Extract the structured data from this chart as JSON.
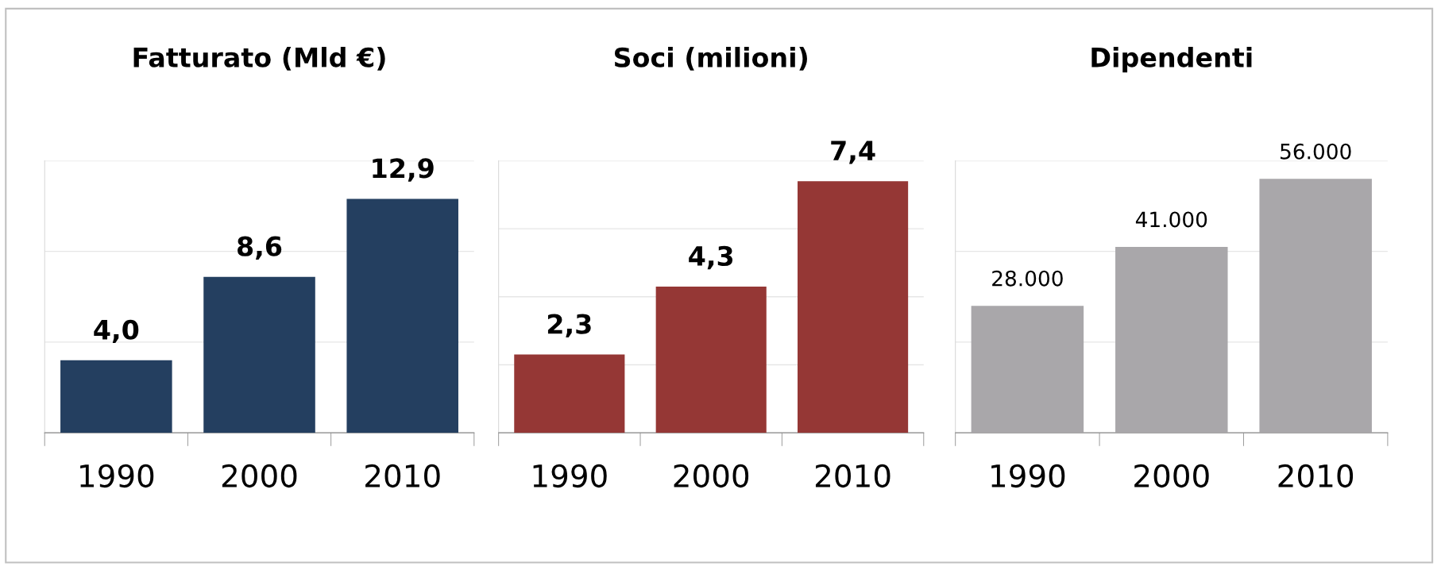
{
  "chart_data": [
    {
      "type": "bar",
      "title": "Fatturato (Mld €)",
      "categories": [
        "1990",
        "2000",
        "2010"
      ],
      "values": [
        4.0,
        8.6,
        12.9
      ],
      "value_labels": [
        "4,0",
        "8,6",
        "12,9"
      ],
      "color": "#243f60",
      "ylim": [
        0,
        15
      ],
      "yticks": [
        {
          "value": 0,
          "label": null
        },
        {
          "value": 5,
          "label": null
        },
        {
          "value": 10,
          "label": null
        },
        {
          "value": 15,
          "label": null
        }
      ],
      "grid": "y"
    },
    {
      "type": "bar",
      "title": "Soci (milioni)",
      "categories": [
        "1990",
        "2000",
        "2010"
      ],
      "values": [
        2.3,
        4.3,
        7.4
      ],
      "value_labels": [
        "2,3",
        "4,3",
        "7,4"
      ],
      "color": "#953735",
      "ylim": [
        0,
        8
      ],
      "yticks": [
        {
          "value": 0,
          "label": null
        },
        {
          "value": 2,
          "label": null
        },
        {
          "value": 4,
          "label": null
        },
        {
          "value": 6,
          "label": null
        },
        {
          "value": 8,
          "label": null
        }
      ],
      "grid": "y"
    },
    {
      "type": "bar",
      "title": "Dipendenti",
      "categories": [
        "1990",
        "2000",
        "2010"
      ],
      "values": [
        28000,
        41000,
        56000
      ],
      "value_labels": [
        "28.000",
        "41.000",
        "56.000"
      ],
      "color": "#a9a7aa",
      "ylim": [
        0,
        60000
      ],
      "yticks": [
        {
          "value": 0,
          "label": null
        },
        {
          "value": 20000,
          "label": null
        },
        {
          "value": 40000,
          "label": null
        },
        {
          "value": 60000,
          "label": null
        }
      ],
      "grid": "y"
    }
  ]
}
